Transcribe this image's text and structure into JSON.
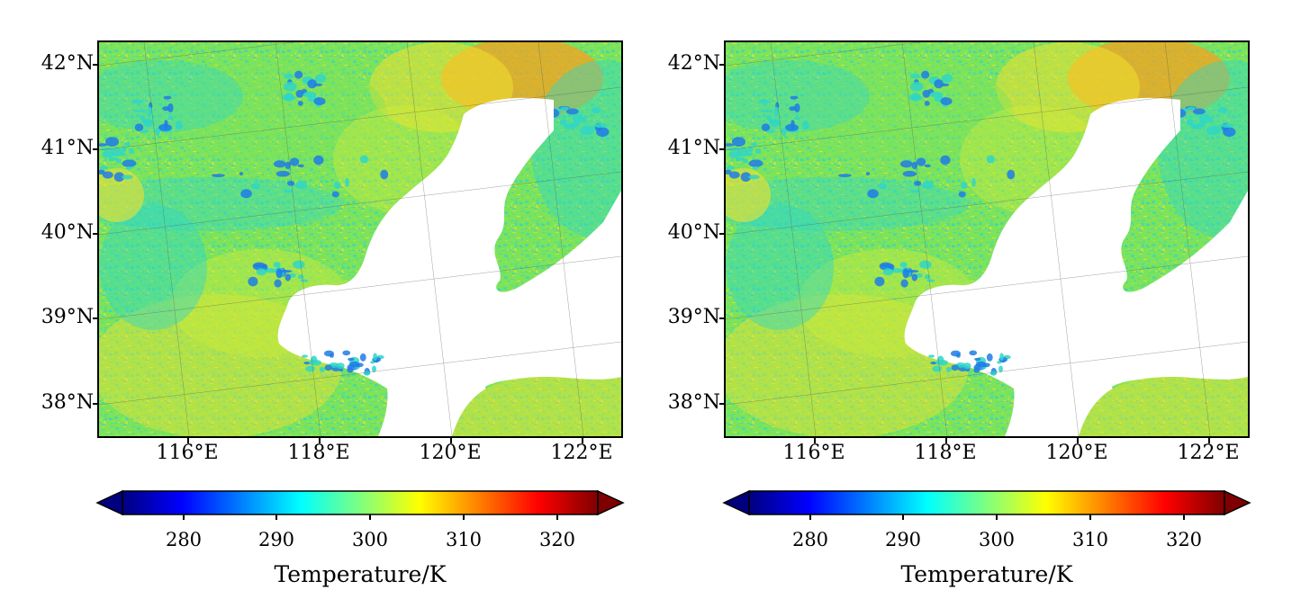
{
  "figure": {
    "panels": [
      {
        "name": "left",
        "lat_labels": [
          "42°N",
          "41°N",
          "40°N",
          "39°N",
          "38°N"
        ],
        "lon_labels": [
          "116°E",
          "118°E",
          "120°E",
          "122°E"
        ],
        "colorbar": {
          "title": "Temperature/K",
          "ticks": [
            "280",
            "290",
            "300",
            "310",
            "320"
          ],
          "range": [
            274,
            326
          ],
          "extend": "both",
          "colormap": "jet"
        }
      },
      {
        "name": "right",
        "lat_labels": [
          "42°N",
          "41°N",
          "40°N",
          "39°N",
          "38°N"
        ],
        "lon_labels": [
          "116°E",
          "118°E",
          "120°E",
          "122°E"
        ],
        "colorbar": {
          "title": "Temperature/K",
          "ticks": [
            "280",
            "290",
            "300",
            "310",
            "320"
          ],
          "range": [
            274,
            326
          ],
          "extend": "both",
          "colormap": "jet"
        }
      }
    ]
  },
  "map": {
    "extent_lon": [
      114.6,
      122.5
    ],
    "extent_lat": [
      37.6,
      42.2
    ],
    "land_colors": {
      "base": "#7de35a",
      "cool": "#2fd6c8",
      "cold": "#1f7be8",
      "warm": "#f2e030",
      "hot": "#f7a020",
      "sea": "#ffffff"
    }
  },
  "colorbar_colors": [
    "#00007f",
    "#0000ff",
    "#007fff",
    "#00ffff",
    "#7fff7f",
    "#ffff00",
    "#ff7f00",
    "#ff0000",
    "#7f0000"
  ]
}
